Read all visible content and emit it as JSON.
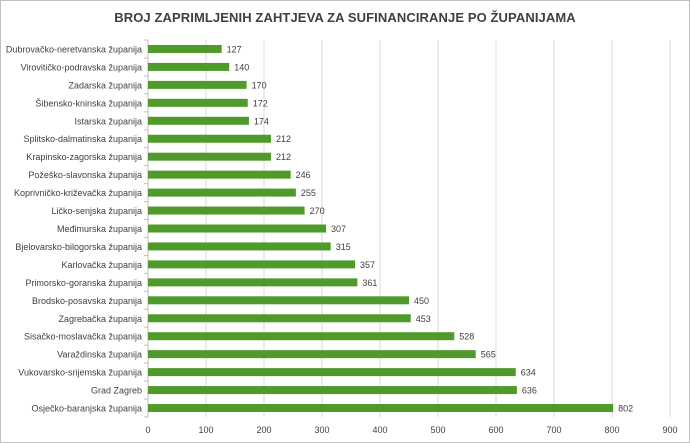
{
  "chart_data": {
    "type": "bar",
    "orientation": "horizontal",
    "title": "BROJ ZAPRIMLJENIH ZAHTJEVA ZA SUFINANCIRANJE PO ŽUPANIJAMA",
    "xlim": [
      0,
      900
    ],
    "xticks": [
      "0",
      "100",
      "200",
      "300",
      "400",
      "500",
      "600",
      "700",
      "800",
      "900"
    ],
    "grid": true,
    "bar_color": "#4f9a2a",
    "grid_color": "#d9d9d9",
    "categories": [
      "Dubrovačko-neretvanska županija",
      "Virovitičko-podravska županija",
      "Zadarska županija",
      "Šibensko-kninska županija",
      "Istarska županija",
      "Splitsko-dalmatinska županija",
      "Krapinsko-zagorska županija",
      "Požeško-slavonska županija",
      "Koprivničko-križevačka županija",
      "Ličko-senjska županija",
      "Međimurska županija",
      "Bjelovarsko-bilogorska županija",
      "Karlovačka županija",
      "Primorsko-goranska županija",
      "Brodsko-posavska županija",
      "Zagrebačka županija",
      "Sisačko-moslavačka županija",
      "Varaždinska županija",
      "Vukovarsko-srijemska županija",
      "Grad Zagreb",
      "Osječko-baranjska županija"
    ],
    "values": [
      127,
      140,
      170,
      172,
      174,
      212,
      212,
      246,
      255,
      270,
      307,
      315,
      357,
      361,
      450,
      453,
      528,
      565,
      634,
      636,
      802
    ]
  }
}
